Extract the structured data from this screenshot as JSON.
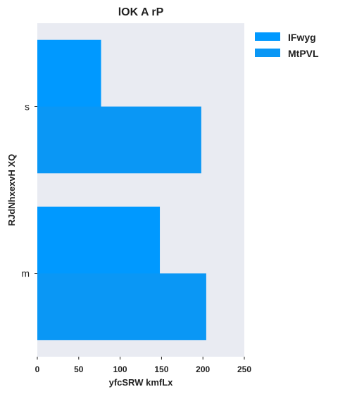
{
  "chart_data": {
    "type": "bar",
    "orientation": "horizontal",
    "title": "lOK A  rP",
    "xlabel": "yfcSRW kmfLx",
    "ylabel": "RJdNhxexvH XQ",
    "categories": [
      "s",
      "m"
    ],
    "series": [
      {
        "name": "IFwyg",
        "values": [
          77,
          148
        ],
        "color": "#0099ff"
      },
      {
        "name": "MtPVL",
        "values": [
          198,
          204
        ],
        "color": "#0a97f5"
      }
    ],
    "xlim": [
      0,
      250
    ],
    "xticks": [
      0,
      50,
      100,
      150,
      200,
      250
    ],
    "grid": false,
    "plot_background": "#e9ebf2",
    "legend_position": "outside-top-right"
  }
}
